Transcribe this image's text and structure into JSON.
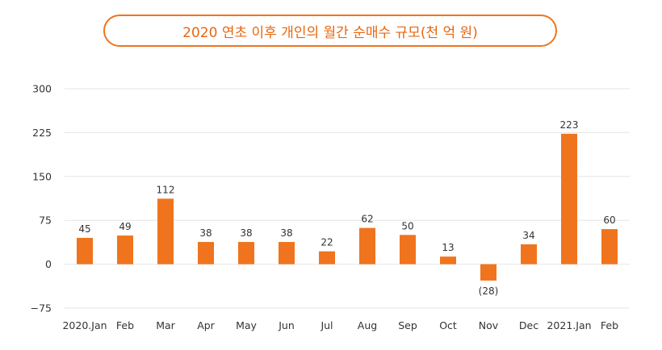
{
  "chart_data": {
    "type": "bar",
    "title": "2020 연초 이후 개인의 월간 순매수 규모(천 억 원)",
    "categories": [
      "2020.Jan",
      "Feb",
      "Mar",
      "Apr",
      "May",
      "Jun",
      "Jul",
      "Aug",
      "Sep",
      "Oct",
      "Nov",
      "Dec",
      "2021.Jan",
      "Feb"
    ],
    "values": [
      45,
      49,
      112,
      38,
      38,
      38,
      22,
      62,
      50,
      13,
      -28,
      34,
      223,
      60
    ],
    "data_labels": [
      "45",
      "49",
      "112",
      "38",
      "38",
      "38",
      "22",
      "62",
      "50",
      "13",
      "(28)",
      "34",
      "223",
      "60"
    ],
    "ylim": [
      -75,
      300
    ],
    "yticks": [
      300,
      225,
      150,
      75,
      0,
      -75
    ],
    "ytick_labels": [
      "300",
      "225",
      "150",
      "75",
      "0",
      "−75"
    ],
    "xlabel": "",
    "ylabel": "",
    "grid": true,
    "legend": "none",
    "bar_color": "#f0741e"
  }
}
